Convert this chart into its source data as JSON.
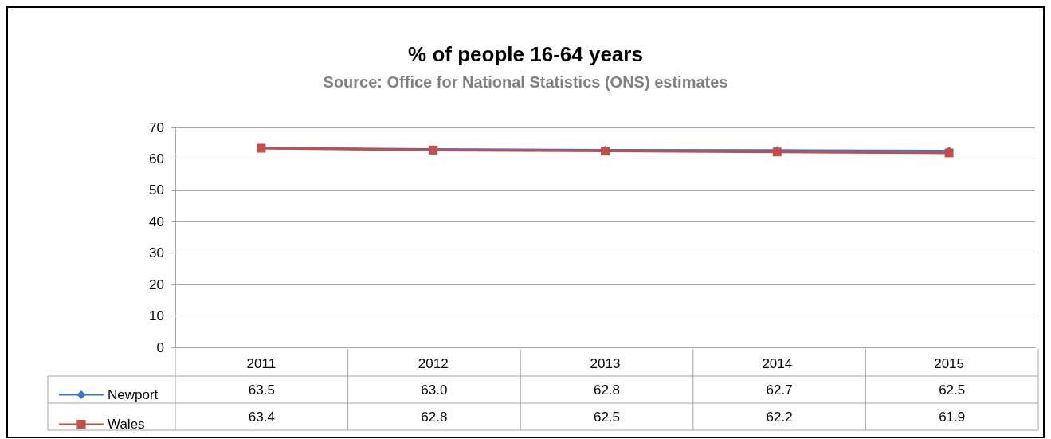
{
  "chart_data": {
    "type": "line",
    "title": "% of people 16-64 years",
    "subtitle": "Source: Office for National Statistics (ONS) estimates",
    "categories": [
      "2011",
      "2012",
      "2013",
      "2014",
      "2015"
    ],
    "series": [
      {
        "name": "Newport",
        "color": "#4472c4",
        "marker": "diamond",
        "values": [
          63.5,
          63.0,
          62.8,
          62.7,
          62.5
        ],
        "value_labels": [
          "63.5",
          "63.0",
          "62.8",
          "62.7",
          "62.5"
        ]
      },
      {
        "name": "Wales",
        "color": "#c0504d",
        "marker": "square",
        "values": [
          63.4,
          62.8,
          62.5,
          62.2,
          61.9
        ],
        "value_labels": [
          "63.4",
          "62.8",
          "62.5",
          "62.2",
          "61.9"
        ]
      }
    ],
    "ylim": [
      0,
      70
    ],
    "yticks": [
      0,
      10,
      20,
      30,
      40,
      50,
      60,
      70
    ],
    "grid": "y",
    "legend": "bottom"
  }
}
